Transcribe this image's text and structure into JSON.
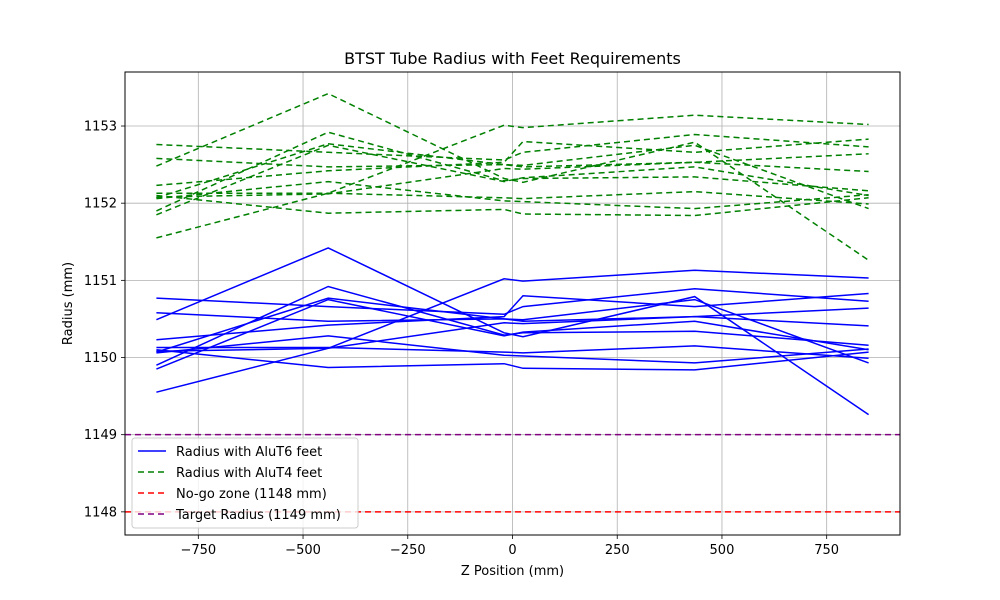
{
  "chart_data": {
    "type": "line",
    "title": "BTST Tube Radius with Feet Requirements",
    "xlabel": "Z Position (mm)",
    "ylabel": "Radius (mm)",
    "xlim": [
      -925,
      925
    ],
    "ylim": [
      1147.7,
      1153.7
    ],
    "xticks": [
      -750,
      -500,
      -250,
      0,
      250,
      500,
      750
    ],
    "xtick_labels": [
      "−750",
      "−500",
      "−250",
      "0",
      "250",
      "500",
      "750"
    ],
    "yticks": [
      1148,
      1149,
      1150,
      1151,
      1152,
      1153
    ],
    "ytick_labels": [
      "1148",
      "1149",
      "1150",
      "1151",
      "1152",
      "1153"
    ],
    "grid": true,
    "legend_position": "bottom-left",
    "x": [
      -850,
      -440,
      -20,
      25,
      435,
      850
    ],
    "groups": [
      {
        "name": "Radius with AluT6 feet",
        "color": "#0000ff",
        "dash": "solid",
        "series": [
          {
            "values": [
              1149.55,
              1150.12,
              1151.02,
              1150.99,
              1151.13,
              1151.03
            ]
          },
          {
            "values": [
              1150.49,
              1151.42,
              1150.32,
              1150.27,
              1150.79,
              1149.26
            ]
          },
          {
            "values": [
              1149.85,
              1150.75,
              1150.28,
              1150.33,
              1150.47,
              1150.1
            ]
          },
          {
            "values": [
              1149.9,
              1150.92,
              1150.29,
              1150.32,
              1150.34,
              1150.16
            ]
          },
          {
            "values": [
              1150.07,
              1150.77,
              1150.5,
              1150.49,
              1150.75,
              1149.93
            ]
          },
          {
            "values": [
              1150.23,
              1150.42,
              1150.53,
              1150.8,
              1150.66,
              1150.83
            ]
          },
          {
            "values": [
              1150.58,
              1150.47,
              1150.5,
              1150.47,
              1150.53,
              1150.64
            ]
          },
          {
            "values": [
              1150.77,
              1150.66,
              1150.56,
              1150.66,
              1150.89,
              1150.73
            ]
          },
          {
            "values": [
              1150.06,
              1150.28,
              1150.03,
              1150.02,
              1149.93,
              1150.11
            ]
          },
          {
            "values": [
              1150.1,
              1149.87,
              1149.92,
              1149.86,
              1149.84,
              1150.07
            ]
          },
          {
            "values": [
              1150.13,
              1150.13,
              1150.07,
              1150.06,
              1150.15,
              1149.99
            ]
          },
          {
            "values": [
              1150.08,
              1150.12,
              1150.45,
              1150.44,
              1150.53,
              1150.41
            ]
          }
        ]
      },
      {
        "name": "Radius with AluT4 feet",
        "color": "#008000",
        "dash": "6,4",
        "series": [
          {
            "values": [
              1151.55,
              1152.13,
              1153.01,
              1152.98,
              1153.14,
              1153.02
            ]
          },
          {
            "values": [
              1152.48,
              1153.42,
              1152.32,
              1152.27,
              1152.79,
              1151.26
            ]
          },
          {
            "values": [
              1151.85,
              1152.75,
              1152.28,
              1152.33,
              1152.47,
              1152.1
            ]
          },
          {
            "values": [
              1151.9,
              1152.92,
              1152.29,
              1152.32,
              1152.34,
              1152.16
            ]
          },
          {
            "values": [
              1152.07,
              1152.77,
              1152.5,
              1152.49,
              1152.75,
              1151.93
            ]
          },
          {
            "values": [
              1152.23,
              1152.42,
              1152.53,
              1152.8,
              1152.66,
              1152.83
            ]
          },
          {
            "values": [
              1152.58,
              1152.47,
              1152.5,
              1152.47,
              1152.53,
              1152.64
            ]
          },
          {
            "values": [
              1152.76,
              1152.66,
              1152.56,
              1152.66,
              1152.89,
              1152.73
            ]
          },
          {
            "values": [
              1152.06,
              1152.28,
              1152.03,
              1152.02,
              1151.93,
              1152.11
            ]
          },
          {
            "values": [
              1152.1,
              1151.87,
              1151.92,
              1151.86,
              1151.84,
              1152.07
            ]
          },
          {
            "values": [
              1152.13,
              1152.13,
              1152.07,
              1152.06,
              1152.15,
              1151.99
            ]
          },
          {
            "values": [
              1152.08,
              1152.12,
              1152.45,
              1152.44,
              1152.53,
              1152.41
            ]
          }
        ]
      }
    ],
    "reference_lines": [
      {
        "name": "No-go zone (1148 mm)",
        "value": 1148,
        "color": "#ff0000",
        "dash": "6,4"
      },
      {
        "name": "Target Radius (1149 mm)",
        "value": 1149,
        "color": "#800080",
        "dash": "6,4"
      }
    ]
  }
}
